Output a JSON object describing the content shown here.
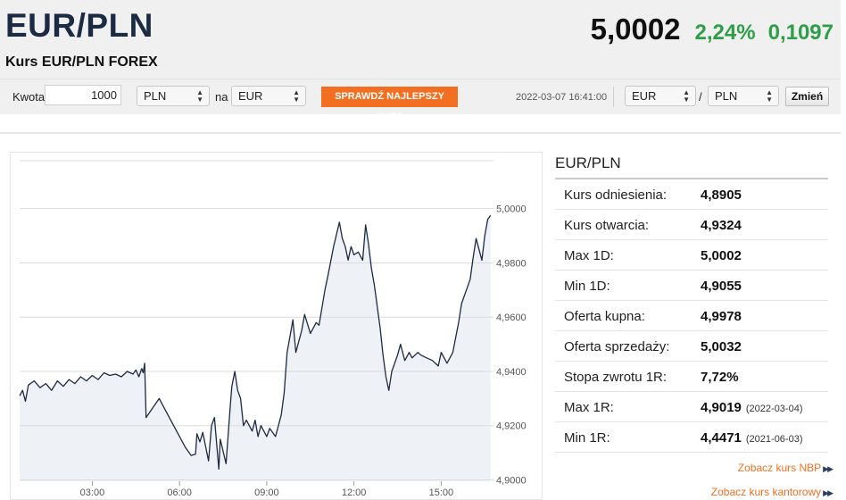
{
  "header": {
    "pair": "EUR/PLN",
    "subtitle": "Kurs EUR/PLN FOREX",
    "price": "5,0002",
    "change_pct": "2,24%",
    "change_abs": "0,1097",
    "change_color": "#2e9e48"
  },
  "converter": {
    "amount_label": "Kwota",
    "amount_value": "1000",
    "from_currency": "PLN",
    "na_label": "na",
    "to_currency": "EUR",
    "cta_label": "SPRAWDŹ NAJLEPSZY KURS",
    "cta_color": "#f26f21",
    "timestamp": "2022-03-07 16:41:00",
    "pair_base": "EUR",
    "pair_sep": "/",
    "pair_quote": "PLN",
    "swap_label": "Zmień"
  },
  "stats": {
    "title": "EUR/PLN",
    "rows": [
      {
        "label": "Kurs odniesienia:",
        "value": "4,8905",
        "date": ""
      },
      {
        "label": "Kurs otwarcia:",
        "value": "4,9324",
        "date": ""
      },
      {
        "label": "Max 1D:",
        "value": "5,0002",
        "date": ""
      },
      {
        "label": "Min 1D:",
        "value": "4,9055",
        "date": ""
      },
      {
        "label": "Oferta kupna:",
        "value": "4,9978",
        "date": ""
      },
      {
        "label": "Oferta sprzedaży:",
        "value": "5,0032",
        "date": ""
      },
      {
        "label": "Stopa zwrotu 1R:",
        "value": "7,72%",
        "date": ""
      },
      {
        "label": "Max 1R:",
        "value": "4,9019",
        "date": "(2022-03-04)"
      },
      {
        "label": "Min 1R:",
        "value": "4,4471",
        "date": "(2021-06-03)"
      }
    ],
    "link_nbp": "Zobacz kurs NBP",
    "link_kantor": "Zobacz kurs kantorowy"
  },
  "chart_data": {
    "type": "area",
    "title": "",
    "xlabel": "",
    "ylabel": "",
    "x_unit": "hour",
    "xlim": [
      0.5,
      16.8
    ],
    "ylim": [
      4.8995,
      5.018
    ],
    "x_ticks": [
      3,
      6,
      9,
      12,
      15
    ],
    "x_tick_labels": [
      "03:00",
      "06:00",
      "09:00",
      "12:00",
      "15:00"
    ],
    "y_ticks": [
      4.9,
      4.92,
      4.94,
      4.96,
      4.98,
      5.0
    ],
    "y_tick_labels": [
      "4,9000",
      "4,9200",
      "4,9400",
      "4,9600",
      "4,9800",
      "5,0000"
    ],
    "grid": true,
    "line_color": "#1d2a44",
    "fill_color": "#eef1f5",
    "series": [
      {
        "x": [
          0.5,
          0.6,
          0.7,
          0.8,
          1.0,
          1.2,
          1.4,
          1.6,
          1.8,
          2.0,
          2.2,
          2.4,
          2.6,
          2.8,
          3.0,
          3.2,
          3.4,
          3.6,
          3.8,
          4.0,
          4.2,
          4.4,
          4.5,
          4.6,
          4.7,
          4.75,
          4.8,
          4.85,
          5.3,
          5.6,
          5.9,
          6.2,
          6.4,
          6.55,
          6.6,
          6.7,
          6.8,
          7.0,
          7.1,
          7.2,
          7.35,
          7.4,
          7.6,
          7.75,
          7.8,
          7.9,
          8.0,
          8.1,
          8.2,
          8.3,
          8.5,
          8.6,
          8.7,
          8.8,
          9.0,
          9.1,
          9.3,
          9.5,
          9.6,
          9.7,
          9.8,
          9.9,
          10.0,
          10.2,
          10.3,
          10.5,
          10.7,
          10.8,
          11.0,
          11.1,
          11.3,
          11.5,
          11.6,
          11.7,
          11.8,
          11.9,
          12.0,
          12.15,
          12.3,
          12.4,
          12.5,
          12.6,
          12.7,
          12.8,
          12.9,
          13.0,
          13.1,
          13.2,
          13.3,
          13.5,
          13.6,
          13.75,
          13.9,
          14.0,
          14.2,
          14.3,
          14.5,
          14.7,
          14.9,
          15.0,
          15.2,
          15.4,
          15.6,
          15.7,
          15.9,
          16.0,
          16.1,
          16.2,
          16.4,
          16.5,
          16.6,
          16.7
        ],
        "y": [
          4.931,
          4.933,
          4.929,
          4.935,
          4.9365,
          4.934,
          4.9355,
          4.933,
          4.9365,
          4.9345,
          4.937,
          4.9355,
          4.938,
          4.9365,
          4.9385,
          4.937,
          4.9395,
          4.9385,
          4.939,
          4.938,
          4.94,
          4.939,
          4.9405,
          4.938,
          4.941,
          4.9395,
          4.943,
          4.923,
          4.93,
          4.924,
          4.918,
          4.912,
          4.909,
          4.9095,
          4.917,
          4.914,
          4.9175,
          4.907,
          4.92,
          4.923,
          4.904,
          4.915,
          4.906,
          4.928,
          4.9345,
          4.94,
          4.933,
          4.93,
          4.92,
          4.922,
          4.918,
          4.922,
          4.916,
          4.92,
          4.916,
          4.919,
          4.916,
          4.924,
          4.932,
          4.947,
          4.953,
          4.959,
          4.947,
          4.955,
          4.961,
          4.954,
          4.958,
          4.957,
          4.97,
          4.975,
          4.986,
          4.995,
          4.989,
          4.986,
          4.981,
          4.986,
          4.983,
          4.984,
          4.981,
          4.994,
          4.987,
          4.978,
          4.972,
          4.964,
          4.956,
          4.946,
          4.938,
          4.933,
          4.94,
          4.946,
          4.95,
          4.944,
          4.947,
          4.945,
          4.947,
          4.946,
          4.945,
          4.944,
          4.942,
          4.947,
          4.943,
          4.947,
          4.958,
          4.965,
          4.971,
          4.974,
          4.982,
          4.989,
          4.981,
          4.99,
          4.996,
          4.9975
        ]
      }
    ]
  }
}
